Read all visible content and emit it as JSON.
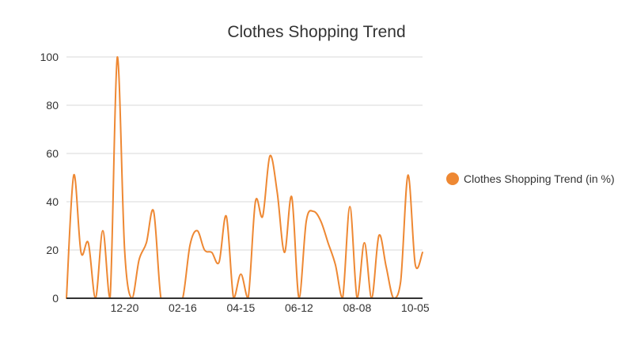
{
  "chart_data": {
    "type": "line",
    "title": "Clothes Shopping Trend",
    "xlabel": "",
    "ylabel": "",
    "ylim": [
      0,
      100
    ],
    "yticks": [
      0,
      20,
      40,
      60,
      80,
      100
    ],
    "grid": true,
    "legend_position": "right",
    "x_tick_labels": [
      "12-20",
      "02-16",
      "04-15",
      "06-12",
      "08-08",
      "10-05"
    ],
    "x_tick_index": [
      8,
      16,
      24,
      32,
      40,
      48
    ],
    "series": [
      {
        "name": "Clothes Shopping Trend (in %)",
        "color": "#ee8833",
        "values": [
          0,
          51,
          19,
          23,
          0,
          28,
          0,
          100,
          20,
          0,
          16,
          23,
          36,
          0,
          0,
          0,
          0,
          22,
          28,
          20,
          19,
          15,
          34,
          0,
          10,
          0,
          40,
          34,
          59,
          44,
          19,
          42,
          0,
          32,
          36,
          32,
          23,
          14,
          0,
          38,
          0,
          23,
          0,
          26,
          13,
          0,
          7,
          51,
          14,
          19
        ]
      }
    ]
  }
}
